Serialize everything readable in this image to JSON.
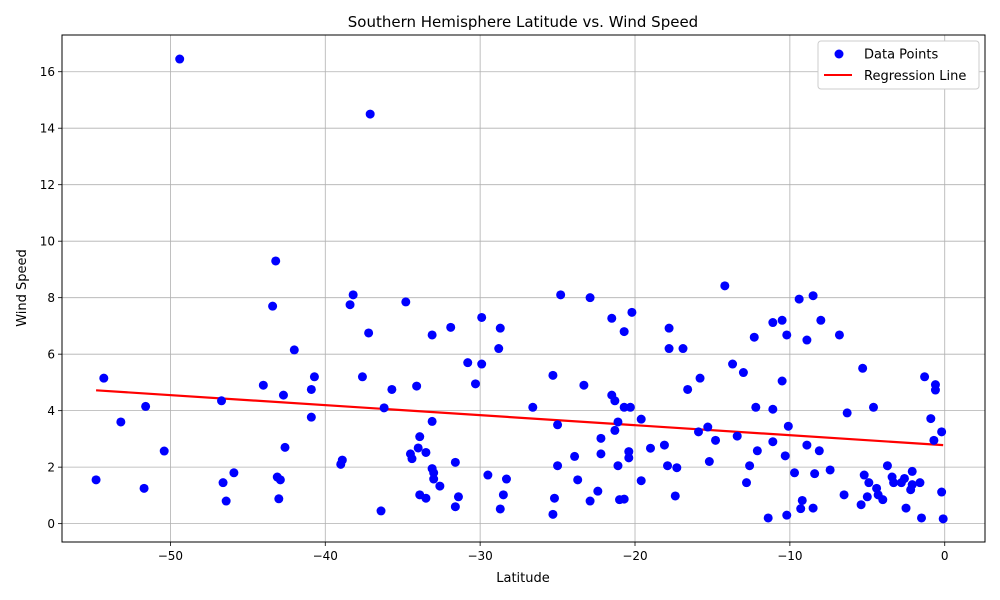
{
  "colors": {
    "points": "#0000ff",
    "regression": "#ff0000",
    "grid": "#b0b0b0",
    "axis": "#000000",
    "background": "#ffffff"
  },
  "chart_data": {
    "type": "scatter",
    "title": "Southern Hemisphere Latitude vs. Wind Speed",
    "xlabel": "Latitude",
    "ylabel": "Wind Speed",
    "xlim": [
      -57,
      2.6
    ],
    "ylim": [
      -0.65,
      17.3
    ],
    "xticks": [
      -50,
      -40,
      -30,
      -20,
      -10,
      0
    ],
    "yticks": [
      0,
      2,
      4,
      6,
      8,
      10,
      12,
      14,
      16
    ],
    "xtick_labels": [
      "−50",
      "−40",
      "−30",
      "−20",
      "−10",
      "0"
    ],
    "ytick_labels": [
      "0",
      "2",
      "4",
      "6",
      "8",
      "10",
      "12",
      "14",
      "16"
    ],
    "grid": true,
    "legend_position": "top-right",
    "series": [
      {
        "name": "Data Points",
        "kind": "scatter",
        "points": [
          [
            -54.8,
            1.55
          ],
          [
            -54.3,
            5.15
          ],
          [
            -53.2,
            3.6
          ],
          [
            -51.7,
            1.25
          ],
          [
            -51.6,
            4.15
          ],
          [
            -50.4,
            2.57
          ],
          [
            -49.4,
            16.45
          ],
          [
            -46.7,
            4.35
          ],
          [
            -46.6,
            1.45
          ],
          [
            -46.4,
            0.8
          ],
          [
            -45.9,
            1.8
          ],
          [
            -44.0,
            4.9
          ],
          [
            -43.4,
            7.7
          ],
          [
            -43.2,
            9.3
          ],
          [
            -43.1,
            1.65
          ],
          [
            -43.0,
            0.88
          ],
          [
            -42.9,
            1.55
          ],
          [
            -42.7,
            4.55
          ],
          [
            -42.6,
            2.7
          ],
          [
            -42.0,
            6.15
          ],
          [
            -40.9,
            4.75
          ],
          [
            -40.9,
            3.77
          ],
          [
            -40.7,
            5.2
          ],
          [
            -39.0,
            2.1
          ],
          [
            -38.9,
            2.25
          ],
          [
            -38.4,
            7.75
          ],
          [
            -38.2,
            8.1
          ],
          [
            -37.6,
            5.2
          ],
          [
            -37.2,
            6.75
          ],
          [
            -37.1,
            14.5
          ],
          [
            -36.4,
            0.45
          ],
          [
            -36.2,
            4.1
          ],
          [
            -35.7,
            4.75
          ],
          [
            -34.8,
            7.85
          ],
          [
            -34.5,
            2.47
          ],
          [
            -34.4,
            2.3
          ],
          [
            -34.1,
            4.87
          ],
          [
            -34.0,
            2.68
          ],
          [
            -33.9,
            3.08
          ],
          [
            -33.9,
            1.02
          ],
          [
            -33.5,
            0.9
          ],
          [
            -33.5,
            2.52
          ],
          [
            -33.1,
            6.68
          ],
          [
            -33.1,
            3.62
          ],
          [
            -33.1,
            1.95
          ],
          [
            -33.0,
            1.8
          ],
          [
            -33.0,
            1.58
          ],
          [
            -32.6,
            1.33
          ],
          [
            -31.9,
            6.95
          ],
          [
            -31.6,
            2.17
          ],
          [
            -31.6,
            0.6
          ],
          [
            -31.4,
            0.95
          ],
          [
            -30.8,
            5.7
          ],
          [
            -30.3,
            4.95
          ],
          [
            -29.9,
            5.65
          ],
          [
            -29.9,
            7.3
          ],
          [
            -29.5,
            1.72
          ],
          [
            -28.8,
            6.2
          ],
          [
            -28.7,
            6.92
          ],
          [
            -28.7,
            0.52
          ],
          [
            -28.5,
            1.02
          ],
          [
            -28.3,
            1.58
          ],
          [
            -26.6,
            4.12
          ],
          [
            -25.3,
            5.25
          ],
          [
            -25.3,
            0.33
          ],
          [
            -25.2,
            0.9
          ],
          [
            -25.0,
            3.5
          ],
          [
            -25.0,
            2.05
          ],
          [
            -24.8,
            8.1
          ],
          [
            -23.9,
            2.38
          ],
          [
            -23.7,
            1.55
          ],
          [
            -23.3,
            4.9
          ],
          [
            -22.9,
            8.0
          ],
          [
            -22.9,
            0.8
          ],
          [
            -22.4,
            1.15
          ],
          [
            -22.2,
            3.02
          ],
          [
            -22.2,
            2.47
          ],
          [
            -21.5,
            7.27
          ],
          [
            -21.5,
            4.55
          ],
          [
            -21.3,
            3.3
          ],
          [
            -21.3,
            4.35
          ],
          [
            -21.1,
            3.6
          ],
          [
            -21.1,
            2.05
          ],
          [
            -21.0,
            0.85
          ],
          [
            -20.7,
            6.8
          ],
          [
            -20.7,
            4.12
          ],
          [
            -20.7,
            0.87
          ],
          [
            -20.4,
            2.33
          ],
          [
            -20.4,
            2.55
          ],
          [
            -20.3,
            4.12
          ],
          [
            -20.2,
            7.48
          ],
          [
            -19.6,
            3.7
          ],
          [
            -19.6,
            1.52
          ],
          [
            -19.0,
            2.67
          ],
          [
            -18.1,
            2.78
          ],
          [
            -17.9,
            2.05
          ],
          [
            -17.8,
            6.2
          ],
          [
            -17.8,
            6.92
          ],
          [
            -17.4,
            0.98
          ],
          [
            -17.3,
            1.98
          ],
          [
            -16.9,
            6.2
          ],
          [
            -16.6,
            4.75
          ],
          [
            -15.9,
            3.25
          ],
          [
            -15.8,
            5.15
          ],
          [
            -15.3,
            3.42
          ],
          [
            -15.2,
            2.2
          ],
          [
            -14.8,
            2.95
          ],
          [
            -14.2,
            8.42
          ],
          [
            -13.7,
            5.65
          ],
          [
            -13.4,
            3.1
          ],
          [
            -13.0,
            5.35
          ],
          [
            -12.8,
            1.45
          ],
          [
            -12.6,
            2.05
          ],
          [
            -12.3,
            6.6
          ],
          [
            -12.2,
            4.12
          ],
          [
            -12.1,
            2.58
          ],
          [
            -11.4,
            0.2
          ],
          [
            -11.1,
            7.12
          ],
          [
            -11.1,
            4.05
          ],
          [
            -11.1,
            2.9
          ],
          [
            -10.5,
            7.2
          ],
          [
            -10.5,
            5.05
          ],
          [
            -10.3,
            2.4
          ],
          [
            -10.2,
            6.68
          ],
          [
            -10.2,
            0.3
          ],
          [
            -10.1,
            3.45
          ],
          [
            -9.7,
            1.8
          ],
          [
            -9.4,
            7.95
          ],
          [
            -9.3,
            0.53
          ],
          [
            -9.2,
            0.82
          ],
          [
            -8.9,
            2.78
          ],
          [
            -8.9,
            6.5
          ],
          [
            -8.5,
            8.07
          ],
          [
            -8.5,
            0.55
          ],
          [
            -8.4,
            1.77
          ],
          [
            -8.1,
            2.58
          ],
          [
            -8.0,
            7.2
          ],
          [
            -7.4,
            1.9
          ],
          [
            -6.8,
            6.68
          ],
          [
            -6.5,
            1.02
          ],
          [
            -6.3,
            3.92
          ],
          [
            -5.4,
            0.67
          ],
          [
            -5.3,
            5.5
          ],
          [
            -5.2,
            1.72
          ],
          [
            -5.0,
            0.95
          ],
          [
            -4.9,
            1.45
          ],
          [
            -4.6,
            4.12
          ],
          [
            -4.4,
            1.25
          ],
          [
            -4.3,
            1.02
          ],
          [
            -4.0,
            0.85
          ],
          [
            -3.7,
            2.05
          ],
          [
            -3.4,
            1.65
          ],
          [
            -3.3,
            1.45
          ],
          [
            -2.8,
            1.45
          ],
          [
            -2.6,
            1.6
          ],
          [
            -2.5,
            0.55
          ],
          [
            -2.2,
            1.2
          ],
          [
            -2.1,
            1.38
          ],
          [
            -2.1,
            1.85
          ],
          [
            -1.6,
            1.45
          ],
          [
            -1.5,
            0.2
          ],
          [
            -1.3,
            5.2
          ],
          [
            -0.9,
            3.72
          ],
          [
            -0.7,
            2.95
          ],
          [
            -0.6,
            4.92
          ],
          [
            -0.6,
            4.73
          ],
          [
            -0.2,
            3.25
          ],
          [
            -0.2,
            1.12
          ],
          [
            -0.1,
            0.17
          ]
        ]
      },
      {
        "name": "Regression Line",
        "kind": "line",
        "points": [
          [
            -54.8,
            4.72
          ],
          [
            -0.1,
            2.78
          ]
        ]
      }
    ]
  }
}
